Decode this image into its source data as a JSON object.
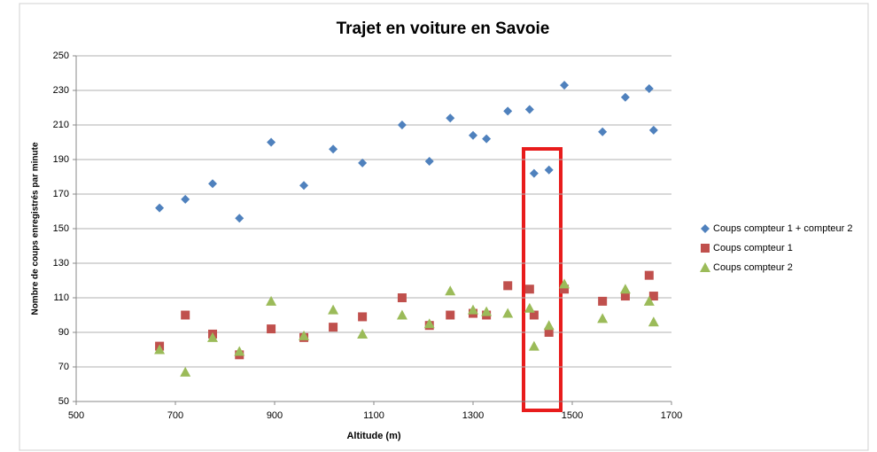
{
  "chart_data": {
    "type": "scatter",
    "title": "Trajet en voiture en Savoie",
    "x_label": "Altitude (m)",
    "y_label": "Nombre de coups enregistrés par minute",
    "x": [
      668,
      720,
      775,
      829,
      893,
      959,
      1018,
      1077,
      1157,
      1212,
      1254,
      1300,
      1327,
      1370,
      1414,
      1423,
      1453,
      1484,
      1561,
      1607,
      1655,
      1664
    ],
    "series": [
      {
        "name": "Coups compteur 1 + compteur 2",
        "color": "#4f81bd",
        "marker": "diamond",
        "values": [
          162,
          167,
          176,
          156,
          200,
          175,
          196,
          188,
          210,
          189,
          214,
          204,
          202,
          218,
          219,
          182,
          184,
          233,
          206,
          226,
          231,
          207
        ]
      },
      {
        "name": "Coups compteur 1",
        "color": "#c0504d",
        "marker": "square",
        "values": [
          82,
          100,
          89,
          77,
          92,
          87,
          93,
          99,
          110,
          94,
          100,
          101,
          100,
          117,
          115,
          100,
          90,
          115,
          108,
          111,
          123,
          111
        ]
      },
      {
        "name": "Coups compteur 2",
        "color": "#9bbb59",
        "marker": "triangle",
        "values": [
          80,
          67,
          87,
          79,
          108,
          88,
          103,
          89,
          100,
          95,
          114,
          103,
          102,
          101,
          104,
          82,
          94,
          118,
          98,
          115,
          108,
          96
        ]
      }
    ],
    "xlim": [
      500,
      1700
    ],
    "xticks": [
      500,
      700,
      900,
      1100,
      1300,
      1500,
      1700
    ],
    "ylim": [
      50,
      250
    ],
    "yticks": [
      50,
      70,
      90,
      110,
      130,
      150,
      170,
      190,
      210,
      230,
      250
    ],
    "grid": true,
    "legend": "right"
  }
}
